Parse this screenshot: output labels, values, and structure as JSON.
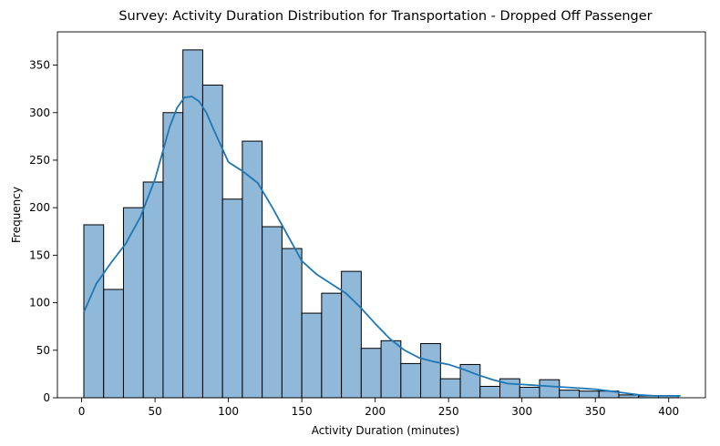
{
  "chart_data": {
    "type": "bar",
    "title": "Survey: Activity Duration Distribution for Transportation - Dropped Off Passenger",
    "xlabel": "Activity Duration (minutes)",
    "ylabel": "Frequency",
    "xlim": [
      -16.5,
      425
    ],
    "ylim": [
      0,
      385
    ],
    "xticks": [
      0,
      50,
      100,
      150,
      200,
      250,
      300,
      350,
      400
    ],
    "yticks": [
      0,
      50,
      100,
      150,
      200,
      250,
      300,
      350
    ],
    "grid": false,
    "bin_width": 13.5,
    "bin_start": 1.5,
    "values": [
      182,
      114,
      200,
      227,
      300,
      366,
      329,
      209,
      270,
      180,
      157,
      89,
      110,
      133,
      52,
      60,
      36,
      57,
      20,
      35,
      12,
      20,
      11,
      19,
      8,
      7,
      7,
      3,
      2,
      2
    ],
    "colors": {
      "bar": "#8fb8d9",
      "kde": "#1f77b4"
    },
    "kde": {
      "x": [
        1.5,
        10,
        20,
        30,
        40,
        50,
        60,
        65,
        70,
        75,
        80,
        85,
        90,
        100,
        110,
        120,
        130,
        140,
        150,
        160,
        170,
        180,
        190,
        200,
        210,
        220,
        230,
        240,
        250,
        260,
        270,
        280,
        290,
        300,
        310,
        320,
        330,
        340,
        350,
        360,
        370,
        380,
        390,
        400,
        408
      ],
      "y": [
        90,
        120,
        142,
        162,
        190,
        230,
        285,
        305,
        316,
        317,
        312,
        300,
        282,
        248,
        238,
        226,
        200,
        172,
        144,
        130,
        120,
        110,
        95,
        78,
        62,
        50,
        42,
        38,
        35,
        30,
        24,
        19,
        15,
        14,
        13,
        12,
        11,
        10,
        9,
        7,
        5,
        3,
        2,
        2,
        2
      ]
    }
  }
}
